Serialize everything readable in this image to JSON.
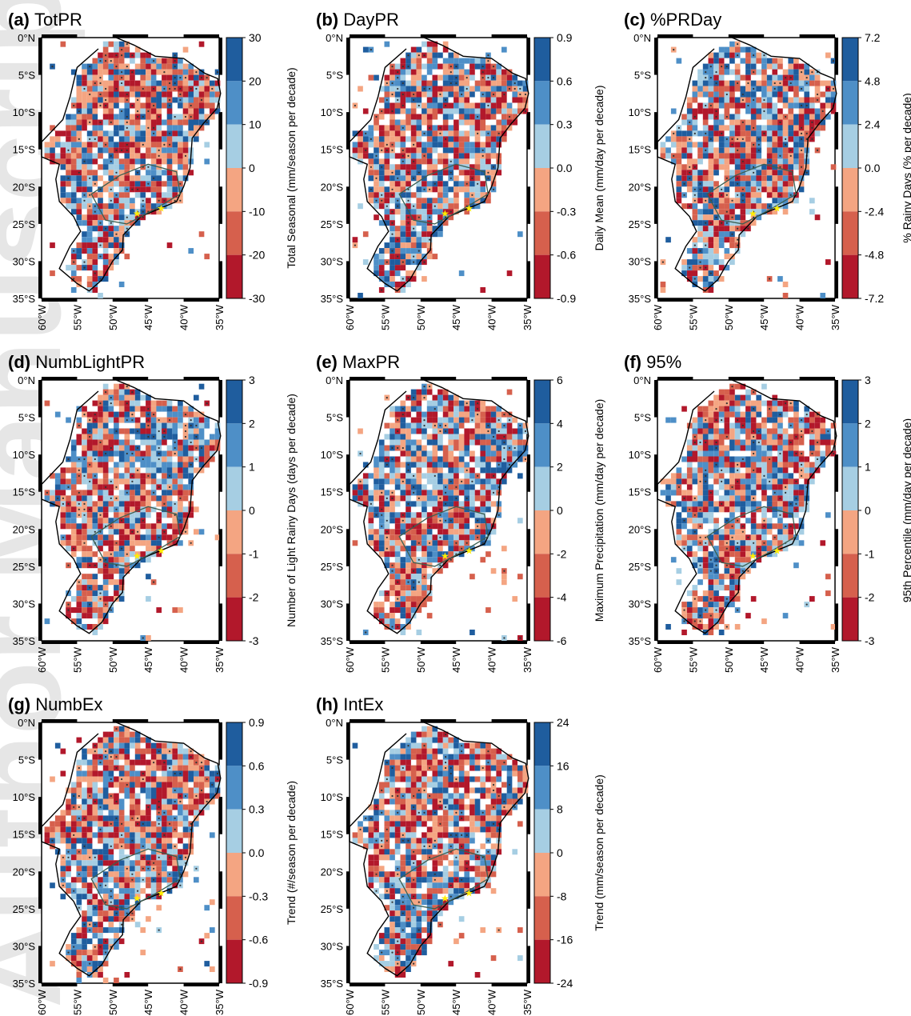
{
  "watermark": "Author Manuscript",
  "latitude_ticks": [
    "0°N",
    "5°S",
    "10°S",
    "15°S",
    "20°S",
    "25°S",
    "30°S",
    "35°S"
  ],
  "longitude_ticks": [
    "60°W",
    "55°W",
    "50°W",
    "45°W",
    "40°W",
    "35°W"
  ],
  "colors": {
    "positive": [
      "#a6cee3",
      "#4e8fc7",
      "#1f5d9e"
    ],
    "negative": [
      "#f4a582",
      "#d6604d",
      "#b2182b"
    ],
    "marker_star": "#ffee00",
    "significance_dot": "#333333",
    "region_outline": "#3b5f52"
  },
  "panels": [
    {
      "letter": "(a)",
      "name": "TotPR",
      "colorbar_label": "Total Seasonal (mm/season per decade)",
      "ticks": [
        "30",
        "20",
        "10",
        "0",
        "-10",
        "-20",
        "-30"
      ]
    },
    {
      "letter": "(b)",
      "name": "DayPR",
      "colorbar_label": "Daily Mean (mm/day per decade)",
      "ticks": [
        "0.9",
        "0.6",
        "0.3",
        "0.0",
        "-0.3",
        "-0.6",
        "-0.9"
      ]
    },
    {
      "letter": "(c)",
      "name": "%PRDay",
      "colorbar_label": "% Rainy Days (% per decade)",
      "ticks": [
        "7.2",
        "4.8",
        "2.4",
        "0.0",
        "-2.4",
        "-4.8",
        "-7.2"
      ]
    },
    {
      "letter": "(d)",
      "name": "NumbLightPR",
      "colorbar_label": "Number of Light Rainy Days (days per decade)",
      "ticks": [
        "3",
        "2",
        "1",
        "0",
        "-1",
        "-2",
        "-3"
      ]
    },
    {
      "letter": "(e)",
      "name": "MaxPR",
      "colorbar_label": "Maximum Precipitation (mm/day per decade)",
      "ticks": [
        "6",
        "4",
        "2",
        "0",
        "-2",
        "-4",
        "-6"
      ]
    },
    {
      "letter": "(f)",
      "name": "95%",
      "colorbar_label": "95th Percentile (mm/day per decade)",
      "ticks": [
        "3",
        "2",
        "1",
        "0",
        "-1",
        "-2",
        "-3"
      ]
    },
    {
      "letter": "(g)",
      "name": "NumbEx",
      "colorbar_label": "Trend (#/season per decade)",
      "ticks": [
        "0.9",
        "0.6",
        "0.3",
        "0.0",
        "-0.3",
        "-0.6",
        "-0.9"
      ]
    },
    {
      "letter": "(h)",
      "name": "IntEx",
      "colorbar_label": "Trend (mm/season per decade)",
      "ticks": [
        "24",
        "16",
        "8",
        "0",
        "-8",
        "-16",
        "-24"
      ]
    }
  ]
}
